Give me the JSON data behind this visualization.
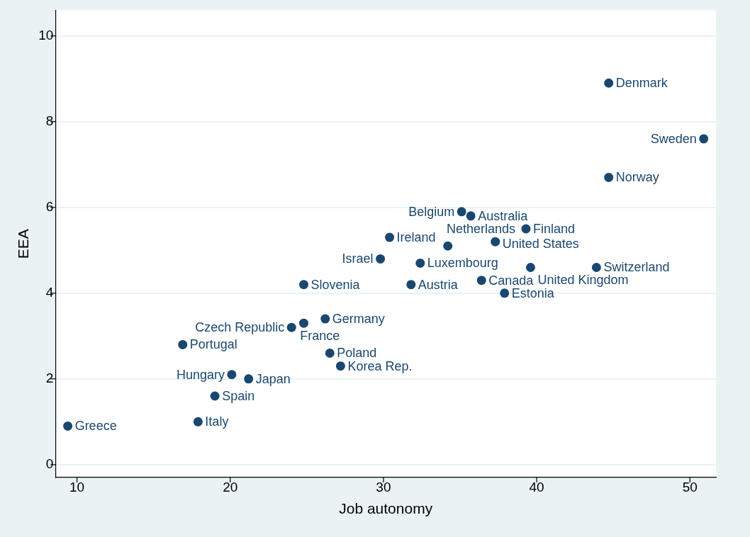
{
  "chart_data": {
    "type": "scatter",
    "xlabel": "Job autonomy",
    "ylabel": "EEA",
    "x": [
      9.4,
      17.9,
      19.0,
      20.1,
      21.2,
      16.9,
      24.0,
      24.8,
      26.2,
      26.5,
      27.2,
      24.8,
      29.8,
      30.4,
      31.8,
      32.4,
      34.2,
      35.1,
      35.7,
      37.3,
      39.3,
      36.4,
      37.9,
      39.6,
      43.9,
      44.7,
      44.7,
      50.9
    ],
    "series": [
      {
        "color": "#1a476f",
        "values": [
          0.9,
          1.0,
          1.6,
          2.1,
          2.0,
          2.8,
          3.2,
          3.3,
          3.4,
          2.6,
          2.3,
          4.2,
          4.8,
          5.3,
          4.2,
          4.7,
          5.1,
          5.9,
          5.8,
          5.2,
          5.5,
          4.3,
          4.0,
          4.6,
          4.6,
          8.9,
          6.7,
          7.6
        ]
      }
    ],
    "xlim": [
      8.6,
      51.7
    ],
    "ylim": [
      -0.3,
      10.6
    ],
    "xticks": [
      10,
      20,
      30,
      40,
      50
    ],
    "yticks": [
      0,
      2,
      4,
      6,
      8,
      10
    ],
    "grid": "y",
    "marker": "circle",
    "annotations": [
      {
        "text": "Greece",
        "x": 9.4,
        "y": 0.9
      },
      {
        "text": "Italy",
        "x": 17.9,
        "y": 1.0
      },
      {
        "text": "Spain",
        "x": 19.0,
        "y": 1.6
      },
      {
        "text": "Hungary",
        "x": 20.1,
        "y": 2.1
      },
      {
        "text": "Japan",
        "x": 21.2,
        "y": 2.0
      },
      {
        "text": "Portugal",
        "x": 16.9,
        "y": 2.8
      },
      {
        "text": "Czech Republic",
        "x": 24.0,
        "y": 3.2
      },
      {
        "text": "France",
        "x": 24.8,
        "y": 3.3
      },
      {
        "text": "Germany",
        "x": 26.2,
        "y": 3.4
      },
      {
        "text": "Poland",
        "x": 26.5,
        "y": 2.6
      },
      {
        "text": "Korea Rep.",
        "x": 27.2,
        "y": 2.3
      },
      {
        "text": "Slovenia",
        "x": 24.8,
        "y": 4.2
      },
      {
        "text": "Israel",
        "x": 29.8,
        "y": 4.8
      },
      {
        "text": "Ireland",
        "x": 30.4,
        "y": 5.3
      },
      {
        "text": "Austria",
        "x": 31.8,
        "y": 4.2
      },
      {
        "text": "Luxembourg",
        "x": 32.4,
        "y": 4.7
      },
      {
        "text": "Netherlands",
        "x": 34.2,
        "y": 5.1
      },
      {
        "text": "Belgium",
        "x": 35.1,
        "y": 5.9
      },
      {
        "text": "Australia",
        "x": 35.7,
        "y": 5.8
      },
      {
        "text": "United States",
        "x": 37.3,
        "y": 5.2
      },
      {
        "text": "Finland",
        "x": 39.3,
        "y": 5.5
      },
      {
        "text": "Canada",
        "x": 36.4,
        "y": 4.3
      },
      {
        "text": "Estonia",
        "x": 37.9,
        "y": 4.0
      },
      {
        "text": "United Kingdom",
        "x": 39.6,
        "y": 4.6
      },
      {
        "text": "Switzerland",
        "x": 43.9,
        "y": 4.6
      },
      {
        "text": "Denmark",
        "x": 44.7,
        "y": 8.9
      },
      {
        "text": "Norway",
        "x": 44.7,
        "y": 6.7
      },
      {
        "text": "Sweden",
        "x": 50.9,
        "y": 7.6
      }
    ]
  }
}
